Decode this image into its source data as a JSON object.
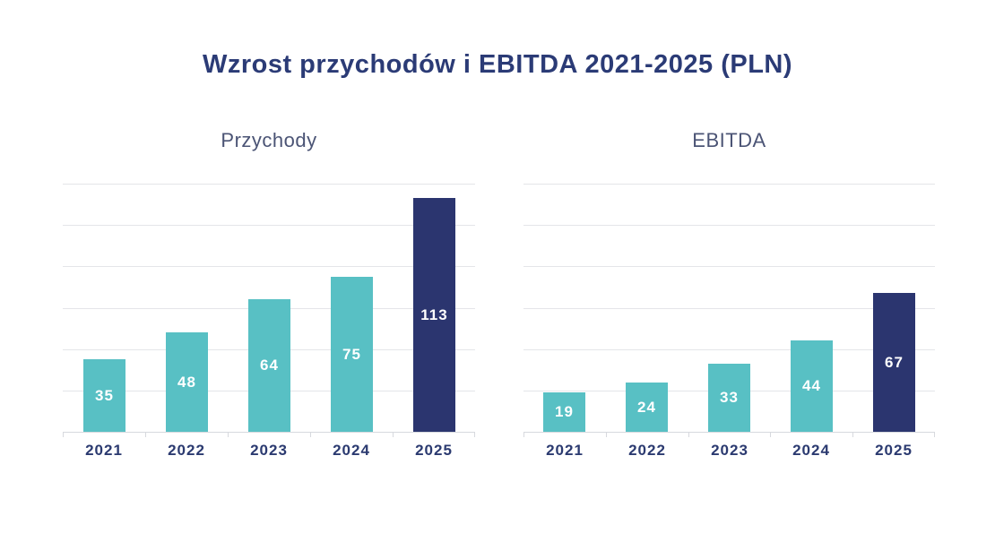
{
  "title": "Wzrost przychodów i EBITDA 2021-2025 (PLN)",
  "colors": {
    "title_text": "#2b3b76",
    "subtitle_text": "#4b5475",
    "axis_label_text": "#2b3a70",
    "value_label_text": "#ffffff",
    "gridline": "#e4e5e9",
    "axis_line": "#d7d9de",
    "bar_teal": "#58c0c4",
    "bar_navy_highlight": "#2b356f"
  },
  "chart_data": [
    {
      "type": "bar",
      "title": "Przychody",
      "categories": [
        "2021",
        "2022",
        "2023",
        "2024",
        "2025"
      ],
      "values": [
        35,
        48,
        64,
        75,
        113
      ],
      "bar_colors": [
        "#58c0c4",
        "#58c0c4",
        "#58c0c4",
        "#58c0c4",
        "#2b356f"
      ],
      "highlight_index": 4,
      "ylim": [
        0,
        120
      ],
      "grid_interval": 20,
      "grid": true,
      "legend": "none",
      "xlabel": "",
      "ylabel": ""
    },
    {
      "type": "bar",
      "title": "EBITDA",
      "categories": [
        "2021",
        "2022",
        "2023",
        "2024",
        "2025"
      ],
      "values": [
        19,
        24,
        33,
        44,
        67
      ],
      "bar_colors": [
        "#58c0c4",
        "#58c0c4",
        "#58c0c4",
        "#58c0c4",
        "#2b356f"
      ],
      "highlight_index": 4,
      "ylim": [
        0,
        120
      ],
      "grid_interval": 20,
      "grid": true,
      "legend": "none",
      "xlabel": "",
      "ylabel": ""
    }
  ]
}
